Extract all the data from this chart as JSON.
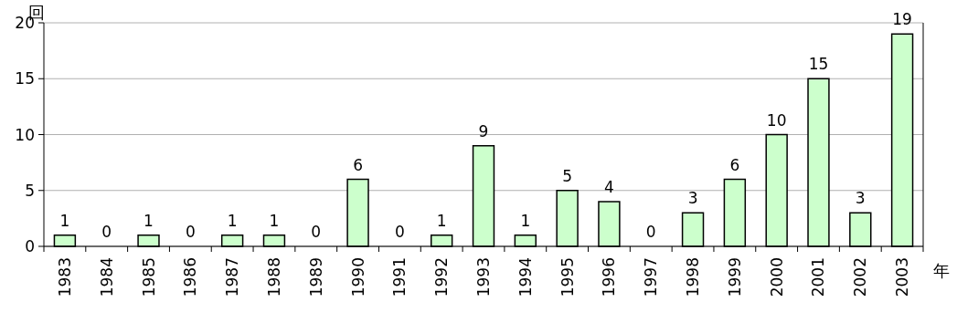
{
  "chart_data": {
    "type": "bar",
    "xlabel": "年",
    "ylabel": "回",
    "categories": [
      "1983",
      "1984",
      "1985",
      "1986",
      "1987",
      "1988",
      "1989",
      "1990",
      "1991",
      "1992",
      "1993",
      "1994",
      "1995",
      "1996",
      "1997",
      "1998",
      "1999",
      "2000",
      "2001",
      "2002",
      "2003"
    ],
    "values": [
      1,
      0,
      1,
      0,
      1,
      1,
      0,
      6,
      0,
      1,
      9,
      1,
      5,
      4,
      0,
      3,
      6,
      10,
      15,
      3,
      19
    ],
    "color": "#ccffcc",
    "ylim": [
      0,
      20
    ],
    "yticks": [
      0,
      5,
      10,
      15,
      20
    ],
    "grid": "y",
    "data_labels": true
  }
}
